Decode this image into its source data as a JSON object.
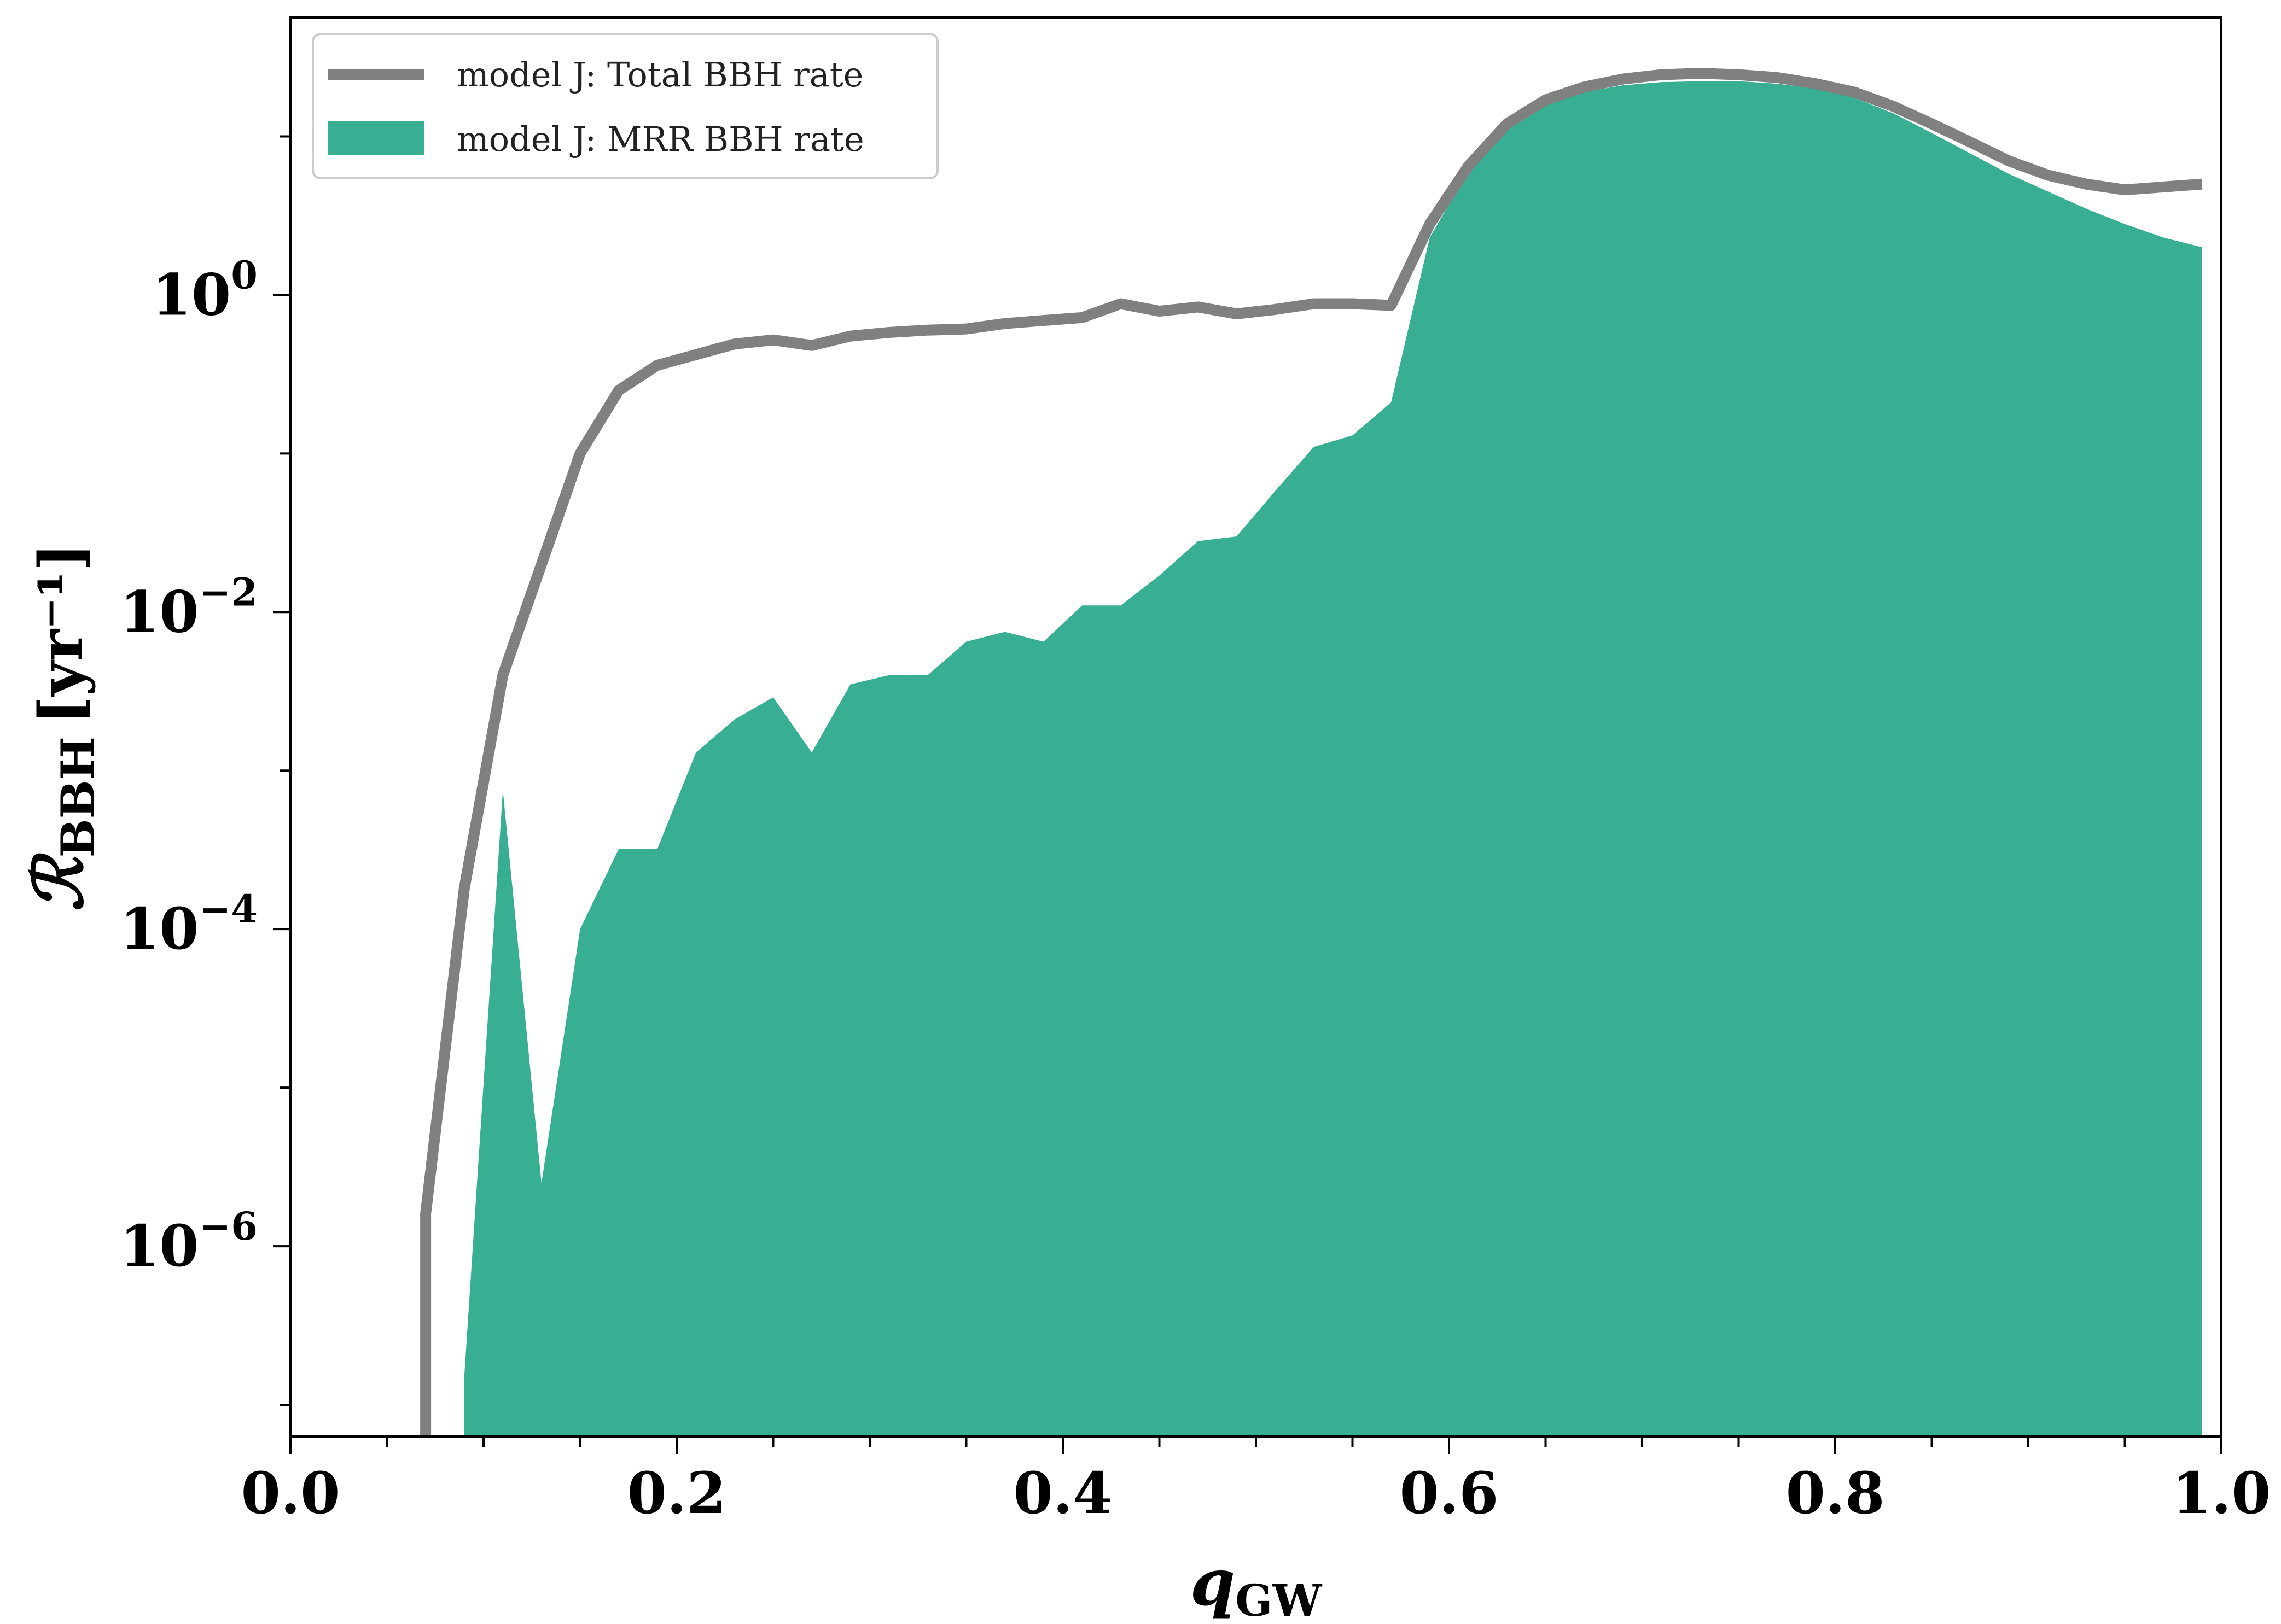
{
  "chart_data": {
    "type": "area",
    "xlabel": {
      "main": "q",
      "sub": "GW"
    },
    "ylabel": {
      "main": "ℛ",
      "sub": "BBH",
      "unit": "[yr⁻¹]"
    },
    "xlim": [
      0.0,
      1.0
    ],
    "ylim_log10": [
      -7.2,
      1.75
    ],
    "y_scale": "log",
    "grid": false,
    "legend_position": "top-left",
    "x_ticks": [
      {
        "value": 0.0,
        "label": "0.0"
      },
      {
        "value": 0.2,
        "label": "0.2"
      },
      {
        "value": 0.4,
        "label": "0.4"
      },
      {
        "value": 0.6,
        "label": "0.6"
      },
      {
        "value": 0.8,
        "label": "0.8"
      },
      {
        "value": 1.0,
        "label": "1.0"
      }
    ],
    "y_ticks": [
      {
        "log10": 0,
        "base": "10",
        "exp": "0"
      },
      {
        "log10": -2,
        "base": "10",
        "exp": "−2"
      },
      {
        "log10": -4,
        "base": "10",
        "exp": "−4"
      },
      {
        "log10": -6,
        "base": "10",
        "exp": "−6"
      }
    ],
    "series": [
      {
        "name": "model J: Total BBH rate",
        "kind": "line",
        "color": "#808080",
        "x": [
          0.07,
          0.07,
          0.09,
          0.11,
          0.13,
          0.15,
          0.17,
          0.19,
          0.21,
          0.23,
          0.25,
          0.27,
          0.29,
          0.31,
          0.33,
          0.35,
          0.37,
          0.39,
          0.41,
          0.43,
          0.45,
          0.47,
          0.49,
          0.51,
          0.53,
          0.55,
          0.57,
          0.59,
          0.61,
          0.63,
          0.65,
          0.67,
          0.69,
          0.71,
          0.73,
          0.75,
          0.77,
          0.79,
          0.81,
          0.83,
          0.85,
          0.87,
          0.89,
          0.91,
          0.93,
          0.95,
          0.97,
          0.99
        ],
        "y": [
          5e-08,
          1.6e-06,
          0.00018,
          0.004,
          0.02,
          0.1,
          0.25,
          0.36,
          0.42,
          0.49,
          0.52,
          0.48,
          0.55,
          0.58,
          0.6,
          0.61,
          0.66,
          0.69,
          0.72,
          0.88,
          0.79,
          0.84,
          0.76,
          0.81,
          0.88,
          0.88,
          0.86,
          2.8,
          6.5,
          12,
          17,
          20.5,
          23,
          24.5,
          25,
          24.5,
          23.5,
          21.5,
          19,
          15.5,
          12,
          9.2,
          7.0,
          5.7,
          5.0,
          4.6,
          4.8,
          5.0
        ]
      },
      {
        "name": "model J: MRR BBH rate",
        "kind": "area",
        "color": "#38ae93",
        "x": [
          0.09,
          0.09,
          0.11,
          0.13,
          0.15,
          0.17,
          0.19,
          0.21,
          0.23,
          0.25,
          0.27,
          0.29,
          0.31,
          0.33,
          0.35,
          0.37,
          0.39,
          0.41,
          0.43,
          0.45,
          0.47,
          0.49,
          0.51,
          0.53,
          0.55,
          0.57,
          0.59,
          0.61,
          0.63,
          0.65,
          0.67,
          0.69,
          0.71,
          0.73,
          0.75,
          0.77,
          0.79,
          0.81,
          0.83,
          0.85,
          0.87,
          0.89,
          0.91,
          0.93,
          0.95,
          0.97,
          0.99
        ],
        "y": [
          6e-08,
          1.5e-07,
          0.00075,
          2.5e-06,
          0.0001,
          0.00032,
          0.00032,
          0.0013,
          0.0021,
          0.0029,
          0.0013,
          0.0035,
          0.004,
          0.004,
          0.0065,
          0.0075,
          0.0065,
          0.011,
          0.011,
          0.017,
          0.028,
          0.03,
          0.058,
          0.11,
          0.13,
          0.21,
          2.3,
          6.0,
          11,
          16,
          19,
          21,
          22,
          22.3,
          22.3,
          21.5,
          20,
          17.5,
          14,
          10.5,
          7.8,
          5.8,
          4.5,
          3.5,
          2.8,
          2.3,
          2.0
        ]
      }
    ]
  }
}
